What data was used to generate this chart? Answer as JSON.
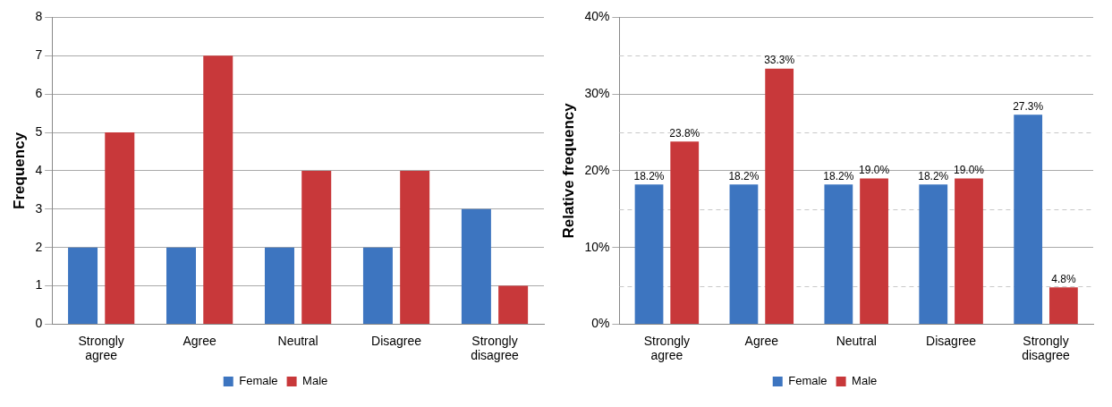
{
  "chart_data": [
    {
      "type": "bar",
      "ylabel": "Frequency",
      "categories": [
        "Strongly agree",
        "Agree",
        "Neutral",
        "Disagree",
        "Strongly disagree"
      ],
      "series": [
        {
          "name": "Female",
          "color": "#3d75c0",
          "values": [
            2,
            2,
            2,
            2,
            3
          ]
        },
        {
          "name": "Male",
          "color": "#c8383a",
          "values": [
            5,
            7,
            4,
            4,
            1
          ]
        }
      ],
      "ylim": [
        0,
        8
      ],
      "yticks": [
        0,
        1,
        2,
        3,
        4,
        5,
        6,
        7,
        8
      ],
      "grid": "y",
      "legend": "bottom"
    },
    {
      "type": "bar",
      "ylabel": "Relative frequency",
      "categories": [
        "Strongly agree",
        "Agree",
        "Neutral",
        "Disagree",
        "Strongly disagree"
      ],
      "series": [
        {
          "name": "Female",
          "color": "#3d75c0",
          "values": [
            18.2,
            18.2,
            18.2,
            18.2,
            27.3
          ],
          "value_labels": [
            "18.2%",
            "18.2%",
            "18.2%",
            "18.2%",
            "27.3%"
          ]
        },
        {
          "name": "Male",
          "color": "#c8383a",
          "values": [
            23.8,
            33.3,
            19.0,
            19.0,
            4.8
          ],
          "value_labels": [
            "23.8%",
            "33.3%",
            "19.0%",
            "19.0%",
            "4.8%"
          ]
        }
      ],
      "ylim": [
        0,
        40
      ],
      "yticks": [
        {
          "value": 0,
          "label": "0%"
        },
        {
          "value": 5,
          "label": null
        },
        {
          "value": 10,
          "label": "10%"
        },
        {
          "value": 15,
          "label": null
        },
        {
          "value": 20,
          "label": "20%"
        },
        {
          "value": 25,
          "label": null
        },
        {
          "value": 30,
          "label": "30%"
        },
        {
          "value": 35,
          "label": null
        },
        {
          "value": 40,
          "label": "40%"
        }
      ],
      "grid": "y",
      "legend": "bottom"
    }
  ]
}
